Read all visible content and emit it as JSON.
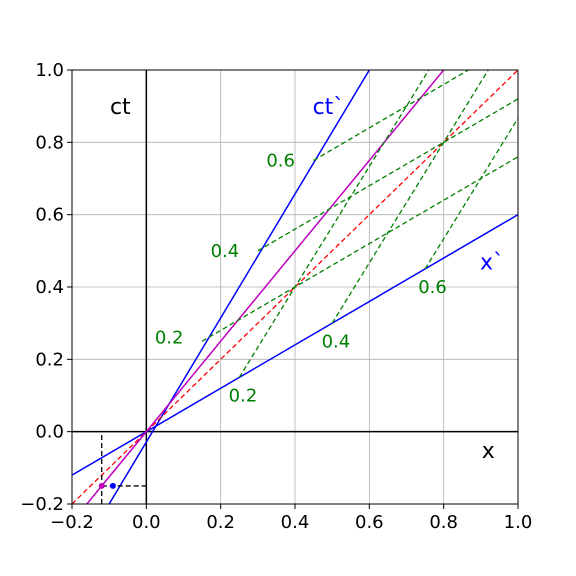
{
  "chart_data": {
    "type": "line",
    "title": "",
    "xlabel": "",
    "ylabel": "",
    "xlim": [
      -0.2,
      1.0
    ],
    "ylim": [
      -0.2,
      1.0
    ],
    "grid": true,
    "x_ticks": [
      -0.2,
      0.0,
      0.2,
      0.4,
      0.6,
      0.8,
      1.0
    ],
    "y_ticks": [
      -0.2,
      0.0,
      0.2,
      0.4,
      0.6,
      0.8,
      1.0
    ],
    "x_tick_labels": [
      "−0.2",
      "0.0",
      "0.2",
      "0.4",
      "0.6",
      "0.8",
      "1.0"
    ],
    "y_tick_labels": [
      "−0.2",
      "0.0",
      "0.2",
      "0.4",
      "0.6",
      "0.8",
      "1.0"
    ],
    "colors": {
      "axes": "#000000",
      "primed_axes": "#0000ff",
      "light_line": "#ff0000",
      "worldline": "#bf00bf",
      "grid_lines": "#008000",
      "grid": "#b0b0b0"
    },
    "axis_labels": [
      {
        "text": "ct",
        "x": -0.07,
        "y": 0.9,
        "color": "#000000"
      },
      {
        "text": "x",
        "x": 0.92,
        "y": -0.05,
        "color": "#000000"
      },
      {
        "text": "ct`",
        "x": 0.49,
        "y": 0.9,
        "color": "#0000ff"
      },
      {
        "text": "x`",
        "x": 0.93,
        "y": 0.47,
        "color": "#0000ff"
      }
    ],
    "series": [
      {
        "style": "solid",
        "color": "#000000",
        "points": [
          [
            0,
            -0.2
          ],
          [
            0,
            1.0
          ]
        ]
      },
      {
        "style": "solid",
        "color": "#000000",
        "points": [
          [
            -0.2,
            0
          ],
          [
            1.0,
            0
          ]
        ]
      },
      {
        "style": "solid",
        "color": "#0000ff",
        "points": [
          [
            -0.1,
            -0.2
          ],
          [
            0.6,
            1.0
          ]
        ]
      },
      {
        "style": "solid",
        "color": "#0000ff",
        "points": [
          [
            -0.2,
            -0.12
          ],
          [
            1.0,
            0.6
          ]
        ]
      },
      {
        "style": "dashed",
        "color": "#ff0000",
        "points": [
          [
            -0.2,
            -0.2
          ],
          [
            1.0,
            1.0
          ]
        ]
      },
      {
        "style": "solid",
        "color": "#bf00bf",
        "points": [
          [
            -0.16,
            -0.2
          ],
          [
            0.8,
            1.0
          ]
        ]
      },
      {
        "style": "dashed",
        "color": "#008000",
        "points": [
          [
            0.15,
            0.25
          ],
          [
            1.0,
            0.76
          ]
        ]
      },
      {
        "style": "dashed",
        "color": "#008000",
        "points": [
          [
            0.3,
            0.5
          ],
          [
            1.0,
            0.92
          ]
        ]
      },
      {
        "style": "dashed",
        "color": "#008000",
        "points": [
          [
            0.45,
            0.75
          ],
          [
            1.0,
            1.08
          ]
        ]
      },
      {
        "style": "dashed",
        "color": "#008000",
        "points": [
          [
            0.25,
            0.15
          ],
          [
            0.76,
            1.0
          ]
        ]
      },
      {
        "style": "dashed",
        "color": "#008000",
        "points": [
          [
            0.5,
            0.3
          ],
          [
            0.92,
            1.0
          ]
        ]
      },
      {
        "style": "dashed",
        "color": "#008000",
        "points": [
          [
            0.75,
            0.45
          ],
          [
            1.08,
            1.0
          ]
        ]
      },
      {
        "style": "dashed",
        "color": "#000000",
        "points": [
          [
            -0.12,
            -0.2
          ],
          [
            -0.12,
            -0.0
          ]
        ]
      },
      {
        "style": "dashed",
        "color": "#000000",
        "points": [
          [
            -0.12,
            -0.15
          ],
          [
            0.0,
            -0.15
          ]
        ]
      },
      {
        "style": "dashed",
        "color": "#bf00bf",
        "points": [
          [
            -0.12,
            -0.15
          ],
          [
            0.0,
            0.0
          ]
        ]
      }
    ],
    "points": [
      {
        "x": -0.12,
        "y": -0.15,
        "color": "#bf00bf"
      },
      {
        "x": -0.09,
        "y": -0.15,
        "color": "#0000ff"
      }
    ],
    "annotations": [
      {
        "text": "0.2",
        "x": 0.1,
        "y": 0.26,
        "color": "#008000",
        "anchor": "end"
      },
      {
        "text": "0.4",
        "x": 0.25,
        "y": 0.5,
        "color": "#008000",
        "anchor": "end"
      },
      {
        "text": "0.6",
        "x": 0.4,
        "y": 0.75,
        "color": "#008000",
        "anchor": "end"
      },
      {
        "text": "0.2",
        "x": 0.26,
        "y": 0.1,
        "color": "#008000",
        "anchor": "middle"
      },
      {
        "text": "0.4",
        "x": 0.51,
        "y": 0.25,
        "color": "#008000",
        "anchor": "middle"
      },
      {
        "text": "0.6",
        "x": 0.77,
        "y": 0.4,
        "color": "#008000",
        "anchor": "middle"
      }
    ]
  }
}
